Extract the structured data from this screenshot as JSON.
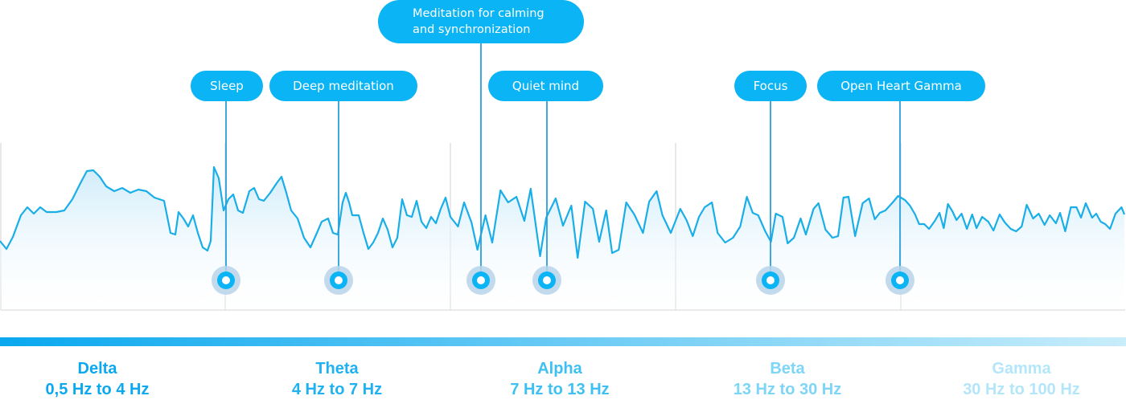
{
  "colors": {
    "accent": "#0bb4f4",
    "wave_stroke": "#1aaee8",
    "wave_fill_top": "#d4effb",
    "marker_line": "#2a9fdd",
    "grid": "#d9d9d9"
  },
  "markers": [
    {
      "label_lines": [
        "Sleep"
      ]
    },
    {
      "label_lines": [
        "Deep meditation"
      ]
    },
    {
      "label_lines": [
        "Meditation for calming",
        "and synchronization"
      ]
    },
    {
      "label_lines": [
        "Quiet mind"
      ]
    },
    {
      "label_lines": [
        "Focus"
      ]
    },
    {
      "label_lines": [
        "Open Heart Gamma"
      ]
    }
  ],
  "bands": [
    {
      "name": "Delta",
      "range": "0,5 Hz to 4 Hz",
      "color": "#0aa8ef"
    },
    {
      "name": "Theta",
      "range": "4 Hz to 7 Hz",
      "color": "#20b2f0"
    },
    {
      "name": "Alpha",
      "range": "7 Hz to 13 Hz",
      "color": "#3ec0f3"
    },
    {
      "name": "Beta",
      "range": "13 Hz to 30 Hz",
      "color": "#7dd5f7"
    },
    {
      "name": "Gamma",
      "range": "30 Hz to 100 Hz",
      "color": "#b4e6fa"
    }
  ]
}
